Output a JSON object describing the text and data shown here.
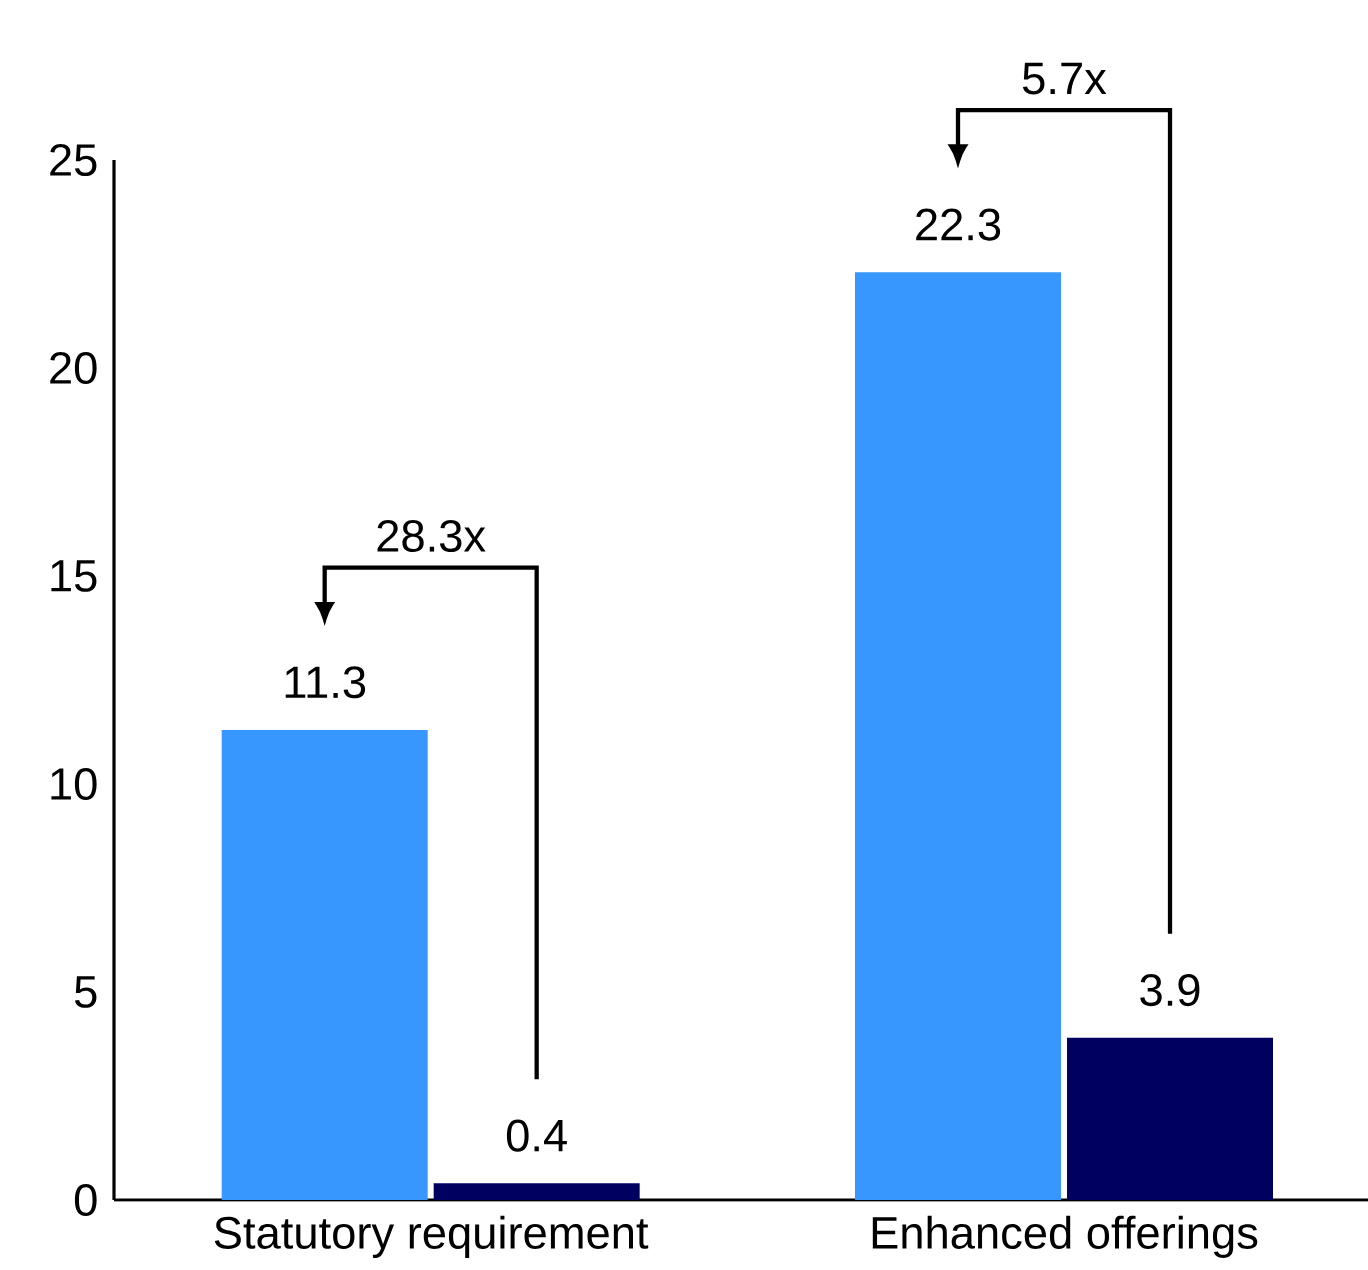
{
  "chart_data": {
    "type": "bar",
    "categories": [
      "Statutory requirement",
      "Enhanced offerings"
    ],
    "series": [
      {
        "color": "#3797ff",
        "values": [
          11.3,
          22.3
        ]
      },
      {
        "color": "#000060",
        "values": [
          0.4,
          3.9
        ]
      }
    ],
    "ylim": [
      0,
      25
    ],
    "yticks": [
      0,
      5,
      10,
      15,
      20,
      25
    ],
    "data_labels": true,
    "grid": false,
    "annotations": [
      "28.3x",
      "5.7x"
    ]
  }
}
